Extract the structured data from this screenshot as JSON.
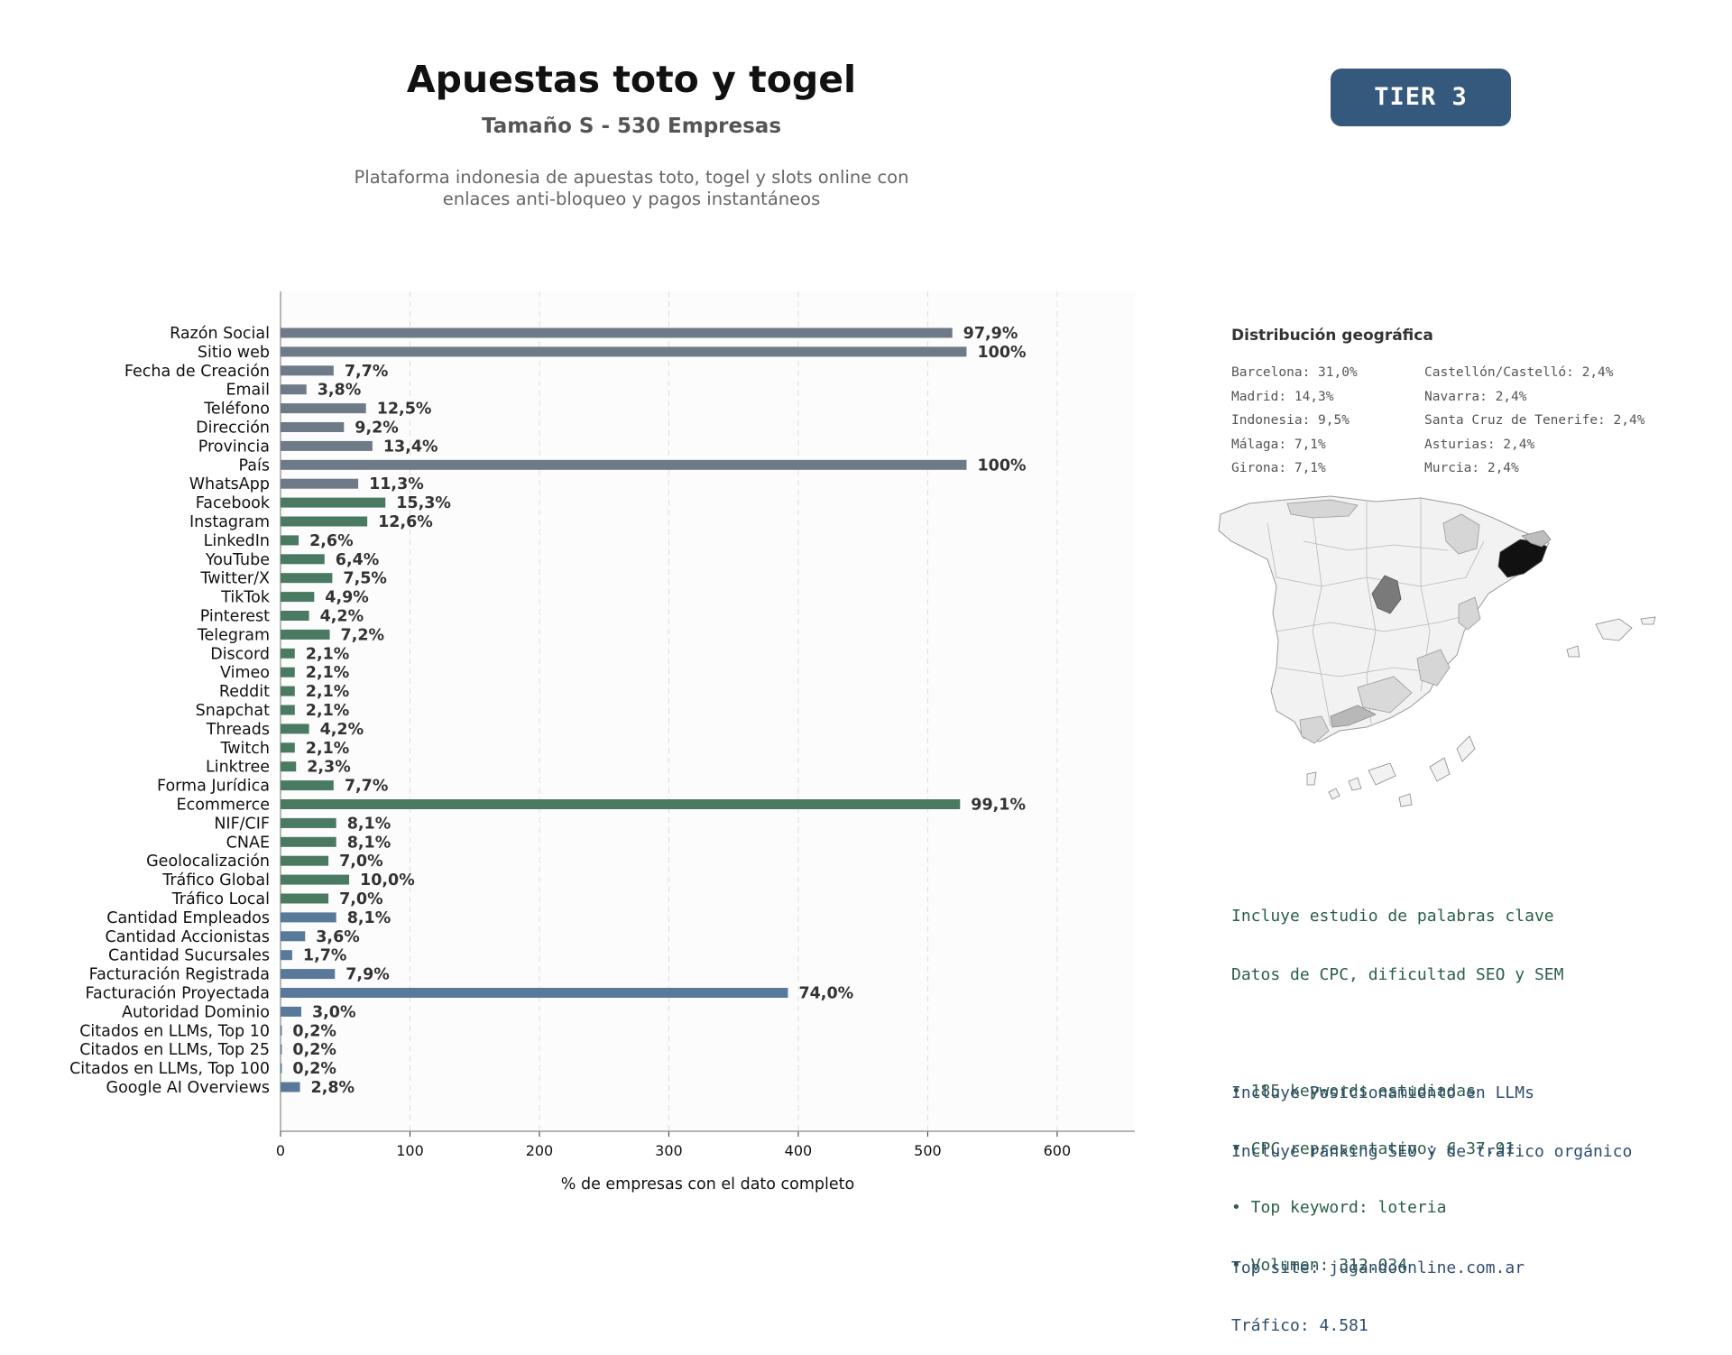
{
  "header": {
    "title": "Apuestas toto y togel",
    "subtitle": "Tamaño S - 530 Empresas",
    "description_line1": "Plataforma indonesia de apuestas toto, togel y slots online con",
    "description_line2": "enlaces anti-bloqueo y pagos instantáneos",
    "tier": "TIER 3"
  },
  "colors": {
    "gray_group": "#6e7a87",
    "green_group": "#4a7a62",
    "blue_group": "#58799a",
    "tier_badge": "#34597d"
  },
  "chart_data": {
    "type": "bar",
    "orientation": "horizontal",
    "xlabel": "% de empresas con el dato completo",
    "xlim": [
      0,
      660
    ],
    "xticks": [
      0,
      100,
      200,
      300,
      400,
      500,
      600
    ],
    "grid": "vertical dashed",
    "categories": [
      "Razón Social",
      "Sitio web",
      "Fecha de Creación",
      "Email",
      "Teléfono",
      "Dirección",
      "Provincia",
      "País",
      "WhatsApp",
      "Facebook",
      "Instagram",
      "LinkedIn",
      "YouTube",
      "Twitter/X",
      "TikTok",
      "Pinterest",
      "Telegram",
      "Discord",
      "Vimeo",
      "Reddit",
      "Snapchat",
      "Threads",
      "Twitch",
      "Linktree",
      "Forma Jurídica",
      "Ecommerce",
      "NIF/CIF",
      "CNAE",
      "Geolocalización",
      "Tráfico Global",
      "Tráfico Local",
      "Cantidad Empleados",
      "Cantidad Accionistas",
      "Cantidad Sucursales",
      "Facturación Registrada",
      "Facturación Proyectada",
      "Autoridad Dominio",
      "Citados en LLMs, Top 10",
      "Citados en LLMs, Top 25",
      "Citados en LLMs, Top 100",
      "Google AI Overviews"
    ],
    "values": [
      519,
      530,
      41,
      20,
      66,
      49,
      71,
      530,
      60,
      81,
      67,
      14,
      34,
      40,
      26,
      22,
      38,
      11,
      11,
      11,
      11,
      22,
      11,
      12,
      41,
      525,
      43,
      43,
      37,
      53,
      37,
      43,
      19,
      9,
      42,
      392,
      16,
      1,
      1,
      1,
      15
    ],
    "labels": [
      "97,9%",
      "100%",
      "7,7%",
      "3,8%",
      "12,5%",
      "9,2%",
      "13,4%",
      "100%",
      "11,3%",
      "15,3%",
      "12,6%",
      "2,6%",
      "6,4%",
      "7,5%",
      "4,9%",
      "4,2%",
      "7,2%",
      "2,1%",
      "2,1%",
      "2,1%",
      "2,1%",
      "4,2%",
      "2,1%",
      "2,3%",
      "7,7%",
      "99,1%",
      "8,1%",
      "8,1%",
      "7,0%",
      "10,0%",
      "7,0%",
      "8,1%",
      "3,6%",
      "1,7%",
      "7,9%",
      "74,0%",
      "3,0%",
      "0,2%",
      "0,2%",
      "0,2%",
      "2,8%"
    ],
    "groups": [
      "gray",
      "gray",
      "gray",
      "gray",
      "gray",
      "gray",
      "gray",
      "gray",
      "gray",
      "green",
      "green",
      "green",
      "green",
      "green",
      "green",
      "green",
      "green",
      "green",
      "green",
      "green",
      "green",
      "green",
      "green",
      "green",
      "green",
      "green",
      "green",
      "green",
      "green",
      "green",
      "green",
      "blue",
      "blue",
      "blue",
      "blue",
      "blue",
      "blue",
      "blue",
      "blue",
      "blue",
      "blue"
    ]
  },
  "geo": {
    "title": "Distribución geográfica",
    "items": [
      "Barcelona: 31,0%",
      "Castellón/Castelló: 2,4%",
      "Madrid: 14,3%",
      "Navarra: 2,4%",
      "Indonesia: 9,5%",
      "Santa Cruz de Tenerife: 2,4%",
      "Málaga: 7,1%",
      "Asturias: 2,4%",
      "Girona: 7,1%",
      "Murcia: 2,4%"
    ]
  },
  "keywords": {
    "lines": [
      "Incluye estudio de palabras clave",
      "Datos de CPC, dificultad SEO y SEM",
      "",
      "• 185 keywords estudiadas",
      "• CPC representativo: € 37.91",
      "• Top keyword: loteria",
      "• Volumen: 312.034"
    ]
  },
  "llm": {
    "lines": [
      "Incluye Posicionamiento en LLMs",
      "Incluye ranking SEO y de tráfico orgánico",
      "",
      "Top site: jugandoonline.com.ar",
      "Tráfico: 4.581"
    ]
  }
}
